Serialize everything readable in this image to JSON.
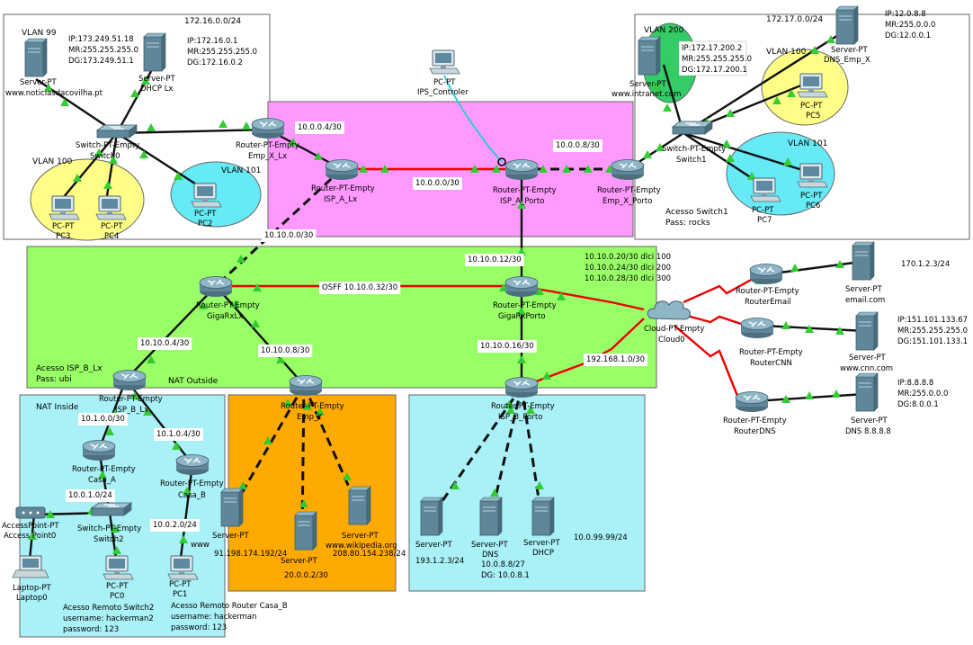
{
  "areas": {
    "emp_x_lx_net": "172.16.0.0/24",
    "emp_x_porto_net": "172.17.0.0/24",
    "vlan99": "VLAN 99",
    "vlan100_lx": "VLAN 100",
    "vlan101_lx": "VLAN 101",
    "vlan200": "VLAN 200",
    "vlan100_porto": "VLAN 100",
    "vlan101_porto": "VLAN 101",
    "acesso_switch1_l1": "Acesso Switch1",
    "acesso_switch1_l2": "Pass: rocks",
    "acesso_isp_b_l1": "Acesso ISP_B_Lx",
    "acesso_isp_b_l2": "Pass: ubi",
    "nat_outside": "NAT Outside",
    "nat_inside": "NAT Inside"
  },
  "info": {
    "noticias_ip": "IP:173.249.51.18",
    "noticias_mr": "MR:255.255.255.0",
    "noticias_dg": "DG:173.249.51.1",
    "dhcp_ip": "IP:172.16.0.1",
    "dhcp_mr": "MR:255.255.255.0",
    "dhcp_dg": "DG:172.16.0.2",
    "intranet_ip": "IP:172.17.200.2",
    "intranet_mr": "MR:255.255.255.0",
    "intranet_dg": "DG:172.17.200.1",
    "dnsx_ip": "IP:12.0.8.8",
    "dnsx_mr": "MR:255.0.0.0",
    "dnsx_dg": "DG:12.0.0.1",
    "cnn_ip": "IP:151.101.133.67",
    "cnn_mr": "MR:255.255.255.0",
    "cnn_dg": "DG:151.101.133.1",
    "dns8_ip": "IP:8.8.8.8",
    "dns8_mr": "MR:255.0.0.0",
    "dns8_dg": "DG:8.0.0.1",
    "email_ip": "170.1.2.3/24",
    "cloud_l1": "10.10.0.20/30 dlci 100",
    "cloud_l2": "10.10.0.24/30 dlci 200",
    "cloud_l3": "10.10.0.28/30 dlci 300",
    "porto_dns_l1": "10.0.8.8/27",
    "porto_dns_l2": "DG: 10.0.8.1",
    "porto_srv1_ip": "193.1.2.3/24",
    "porto_net": "10.0.99.99/24",
    "empy_srv1_ip": "91.198.174.192/24",
    "empy_srv2_ip": "20.0.0.2/30",
    "empy_srv3_ip": "208.80.154.238/24",
    "remote_sw2_l1": "Acesso Remoto Switch2",
    "remote_sw2_l2": "username: hackerman2",
    "remote_sw2_l3": "password: 123",
    "remote_casa_l1": "Acesso Remoto Router Casa_B",
    "remote_casa_l2": "username: hackerman",
    "remote_casa_l3": "password: 123"
  },
  "links": {
    "l_10_0_0_4": "10.0.0.4/30",
    "l_10_0_0_0": "10.0.0.0/30",
    "l_10_0_0_8": "10.0.0.8/30",
    "l_10_10_0_0": "10.10.0.0/30",
    "l_10_10_0_12": "10.10.0.12/30",
    "l_ospf": "OSFF 10.10.0.32/30",
    "l_10_10_0_4": "10.10.0.4/30",
    "l_10_10_0_8": "10.10.0.8/30",
    "l_10_10_0_16": "10.10.0.16/30",
    "l_192": "192.168.1.0/30",
    "l_10_1_0_0": "10.1.0.0/30",
    "l_10_1_0_4": "10.1.0.4/30",
    "l_10_0_1_0": "10.0.1.0/24",
    "l_10_0_2_0": "10.0.2.0/24"
  },
  "devices": {
    "srv_noticias_t": "Server-PT",
    "srv_noticias_n": "www.noticiasdacovilha.pt",
    "srv_dhcp_t": "Server-PT",
    "srv_dhcp_n": "DHCP Lx",
    "sw0_t": "Switch-PT-Empty",
    "sw0_n": "Switch0",
    "pc3_t": "PC-PT",
    "pc3_n": "PC3",
    "pc4_t": "PC-PT",
    "pc4_n": "PC4",
    "pc2_t": "PC-PT",
    "pc2_n": "PC2",
    "r_empxlx_t": "Router-PT-Empty",
    "r_empxlx_n": "Emp_X_Lx",
    "ips_t": "PC-PT",
    "ips_n": "IPS_Controler",
    "r_ispalx_t": "Router-PT-Empty",
    "r_ispalx_n": "ISP_A_Lx",
    "r_ispaporto_t": "Router-PT-Empty",
    "r_ispaporto_n": "ISP_A_Porto",
    "r_empxporto_t": "Router-PT-Empty",
    "r_empxporto_n": "Emp_X_Porto",
    "srv_intranet_t": "Server-PT",
    "srv_intranet_n": "www.intranet.com",
    "srv_dnsx_t": "Server-PT",
    "srv_dnsx_n": "DNS_Emp_X",
    "pc5_t": "PC-PT",
    "pc5_n": "PC5",
    "sw1_t": "Switch-PT-Empty",
    "sw1_n": "Switch1",
    "pc7_t": "PC-PT",
    "pc7_n": "PC7",
    "pc6_t": "PC-PT",
    "pc6_n": "PC6",
    "r_gigalx_t": "Router-PT-Empty",
    "r_gigalx_n": "GigaRxLx",
    "r_gigaporto_t": "Router-PT-Empty",
    "r_gigaporto_n": "GigaRxPorto",
    "cloud_t": "Cloud-PT-Empty",
    "cloud_n": "Cloud0",
    "r_email_t": "Router-PT-Empty",
    "r_email_n": "RouterEmail",
    "srv_email_t": "Server-PT",
    "srv_email_n": "email.com",
    "r_cnn_t": "Router-PT-Empty",
    "r_cnn_n": "RouterCNN",
    "srv_cnn_t": "Server-PT",
    "srv_cnn_n": "www.cnn.com",
    "r_dns_t": "Router-PT-Empty",
    "r_dns_n": "RouterDNS",
    "srv_dns8_t": "Server-PT",
    "srv_dns8_n": "DNS 8.8.8.8",
    "r_ispblx_t": "Router-PT-Empty",
    "r_ispblx_n": "ISP_B_Lx",
    "r_empy_t": "Router-PT-Empty",
    "r_empy_n": "Emp_Y",
    "r_ispbporto_t": "Router-PT-Empty",
    "r_ispbporto_n": "ISP_B_Porto",
    "r_casaa_t": "Router-PT-Empty",
    "r_casaa_n": "Casa_A",
    "r_casab_t": "Router-PT-Empty",
    "r_casab_n": "Casa_B",
    "ap_t": "AccessPoint-PT",
    "ap_n": "Access Point0",
    "sw2_t": "Switch-PT-Empty",
    "sw2_n": "Switch2",
    "laptop_t": "Laptop-PT",
    "laptop_n": "Laptop0",
    "pc0_t": "PC-PT",
    "pc0_n": "PC0",
    "pc1_t": "PC-PT",
    "pc1_n": "PC1",
    "srv_empy1_t": "Server-PT",
    "srv_empy1_n": "www",
    "srv_empy2_t": "Server-PT",
    "srv_empy3_t": "Server-PT",
    "srv_empy3_n": "www.wikipedia.org",
    "srv_porto1_t": "Server-PT",
    "srv_porto2_t": "Server-PT",
    "srv_porto2_n": "DNS",
    "srv_porto3_t": "Server-PT",
    "srv_porto3_n": "DHCP"
  },
  "colors": {
    "pink": "#ff99ff",
    "green": "#99ff66",
    "cyan": "#a9f1f7",
    "orange": "#ffaa00",
    "yellow": "#ffff88",
    "cyan_oval": "#66eaf5",
    "red_link": "#ee0000",
    "link_green": "#33cc33"
  }
}
